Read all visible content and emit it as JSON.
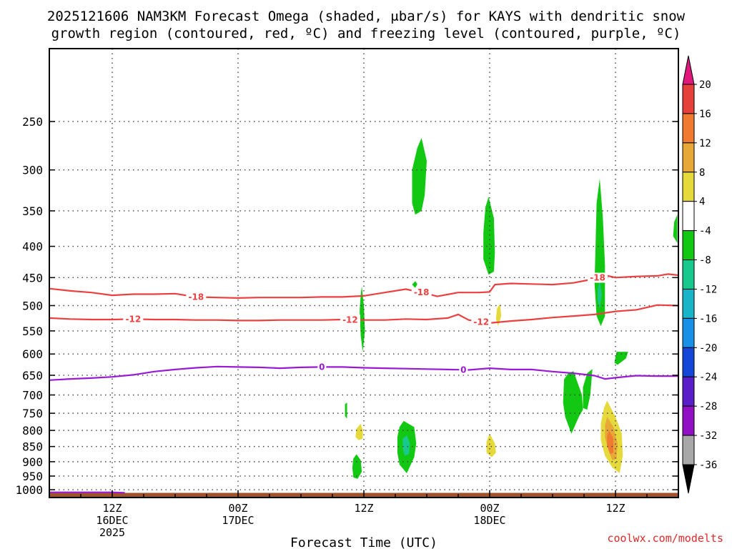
{
  "chart_data": {
    "type": "heatmap",
    "title_line1": "2025121606 NAM3KM Forecast Omega (shaded, μbar/s) for KAYS with dendritic snow",
    "title_line2": "growth region (contoured, red, ºC) and freezing level (contoured, purple, ºC)",
    "xlabel": "Forecast Time (UTC)",
    "credit": "coolwx.com/modelts",
    "y_axis": {
      "log_pressure": true,
      "ylim": [
        1030,
        190
      ],
      "ticks": [
        250,
        300,
        350,
        400,
        450,
        500,
        550,
        600,
        650,
        700,
        750,
        800,
        850,
        900,
        950,
        1000
      ],
      "tick_labels": [
        "250",
        "300",
        "350",
        "400",
        "450",
        "500",
        "550",
        "600",
        "650",
        "700",
        "750",
        "800",
        "850",
        "900",
        "950",
        "1000"
      ]
    },
    "x_axis": {
      "units": "hours from 16DEC2025 00Z",
      "xlim": [
        6,
        66
      ],
      "major_ticks": [
        {
          "x": 12,
          "lines": [
            "12Z",
            "16DEC",
            "2025"
          ]
        },
        {
          "x": 24,
          "lines": [
            "00Z",
            "17DEC"
          ]
        },
        {
          "x": 36,
          "lines": [
            "12Z"
          ]
        },
        {
          "x": 48,
          "lines": [
            "00Z",
            "18DEC"
          ]
        },
        {
          "x": 60,
          "lines": [
            "12Z"
          ]
        }
      ],
      "grid": true
    },
    "colorbar": {
      "levels": [
        "20",
        "16",
        "12",
        "8",
        "4",
        "-4",
        "-8",
        "-12",
        "-16",
        "-20",
        "-24",
        "-28",
        "-32",
        "-36"
      ],
      "colors": [
        "#e0187c",
        "#e5403a",
        "#f07a30",
        "#e8a838",
        "#e6d93c",
        "#ffffff",
        "#12c812",
        "#18c88c",
        "#18b4c8",
        "#1890e8",
        "#1446d8",
        "#5a1ec8",
        "#9210c4",
        "#a8a8a8",
        "#000000"
      ]
    },
    "contours": [
      {
        "label": "-18",
        "color": "#ec4040",
        "points": [
          [
            6,
            469
          ],
          [
            8,
            473
          ],
          [
            10,
            476
          ],
          [
            12,
            481
          ],
          [
            14,
            479
          ],
          [
            16,
            479
          ],
          [
            18,
            478
          ],
          [
            20,
            484
          ],
          [
            22,
            485
          ],
          [
            24,
            486
          ],
          [
            26,
            485
          ],
          [
            28,
            485
          ],
          [
            30,
            485
          ],
          [
            32,
            484
          ],
          [
            34,
            484
          ],
          [
            36,
            482
          ],
          [
            38,
            476
          ],
          [
            40,
            470
          ],
          [
            42,
            478
          ],
          [
            43,
            483
          ],
          [
            45,
            476
          ],
          [
            47,
            476
          ],
          [
            48,
            475
          ],
          [
            48.5,
            462
          ],
          [
            50,
            460
          ],
          [
            52,
            461
          ],
          [
            54,
            462
          ],
          [
            56,
            459
          ],
          [
            58,
            452
          ],
          [
            59,
            446
          ],
          [
            60,
            450
          ],
          [
            62,
            448
          ],
          [
            64,
            447
          ],
          [
            65,
            444
          ],
          [
            66,
            446
          ]
        ]
      },
      {
        "label": "-12",
        "color": "#ec4040",
        "points": [
          [
            6,
            524
          ],
          [
            8,
            526
          ],
          [
            10,
            527
          ],
          [
            12,
            527
          ],
          [
            14,
            526
          ],
          [
            16,
            527
          ],
          [
            18,
            527
          ],
          [
            20,
            528
          ],
          [
            22,
            528
          ],
          [
            24,
            529
          ],
          [
            26,
            529
          ],
          [
            28,
            528
          ],
          [
            30,
            528
          ],
          [
            32,
            528
          ],
          [
            34,
            527
          ],
          [
            36,
            528
          ],
          [
            38,
            528
          ],
          [
            40,
            526
          ],
          [
            42,
            527
          ],
          [
            44,
            524
          ],
          [
            45,
            517
          ],
          [
            46,
            528
          ],
          [
            48,
            534
          ],
          [
            50,
            530
          ],
          [
            52,
            527
          ],
          [
            54,
            523
          ],
          [
            56,
            520
          ],
          [
            58,
            517
          ],
          [
            60,
            511
          ],
          [
            62,
            508
          ],
          [
            64,
            499
          ],
          [
            66,
            500
          ]
        ]
      },
      {
        "label": "0",
        "color": "#9a1ad4",
        "points": [
          [
            6,
            662
          ],
          [
            8,
            659
          ],
          [
            10,
            657
          ],
          [
            12,
            654
          ],
          [
            14,
            649
          ],
          [
            16,
            641
          ],
          [
            18,
            636
          ],
          [
            20,
            632
          ],
          [
            22,
            629
          ],
          [
            24,
            630
          ],
          [
            26,
            631
          ],
          [
            28,
            633
          ],
          [
            30,
            631
          ],
          [
            32,
            630
          ],
          [
            34,
            630
          ],
          [
            36,
            632
          ],
          [
            38,
            633
          ],
          [
            40,
            634
          ],
          [
            42,
            635
          ],
          [
            44,
            636
          ],
          [
            46,
            637
          ],
          [
            48,
            633
          ],
          [
            50,
            636
          ],
          [
            52,
            636
          ],
          [
            54,
            641
          ],
          [
            56,
            645
          ],
          [
            58,
            651
          ],
          [
            59,
            659
          ],
          [
            60,
            656
          ],
          [
            62,
            651
          ],
          [
            64,
            652
          ],
          [
            66,
            652
          ]
        ]
      },
      {
        "label": "",
        "color": "#9a1ad4",
        "points": [
          [
            6,
            1010
          ],
          [
            8,
            1010
          ],
          [
            10,
            1010
          ],
          [
            12,
            1010
          ],
          [
            13.2,
            1012
          ]
        ]
      }
    ],
    "omega_regions": [
      {
        "value": -6,
        "points": [
          [
            41.5,
            266
          ],
          [
            42,
            290
          ],
          [
            41.8,
            330
          ],
          [
            41.5,
            350
          ],
          [
            40.9,
            355
          ],
          [
            40.6,
            340
          ],
          [
            40.6,
            300
          ],
          [
            41.1,
            276
          ]
        ]
      },
      {
        "value": -6,
        "points": [
          [
            40.6,
            462
          ],
          [
            40.9,
            456
          ],
          [
            41.1,
            461
          ],
          [
            40.9,
            468
          ]
        ]
      },
      {
        "value": -6,
        "points": [
          [
            47.9,
            332
          ],
          [
            48.4,
            360
          ],
          [
            48.5,
            410
          ],
          [
            48.4,
            440
          ],
          [
            47.9,
            445
          ],
          [
            47.4,
            420
          ],
          [
            47.4,
            380
          ],
          [
            47.6,
            345
          ]
        ]
      },
      {
        "value": -6,
        "points": [
          [
            58.5,
            310
          ],
          [
            58.8,
            360
          ],
          [
            59.0,
            430
          ],
          [
            59.0,
            520
          ],
          [
            58.6,
            540
          ],
          [
            58.2,
            520
          ],
          [
            58.0,
            460
          ],
          [
            58.1,
            400
          ],
          [
            58.2,
            340
          ]
        ]
      },
      {
        "value": -10,
        "points": [
          [
            58.5,
            455
          ],
          [
            58.7,
            480
          ],
          [
            58.5,
            505
          ],
          [
            58.3,
            490
          ],
          [
            58.3,
            470
          ]
        ]
      },
      {
        "value": -6,
        "points": [
          [
            65.9,
            355
          ],
          [
            65.9,
            395
          ],
          [
            65.5,
            385
          ],
          [
            65.6,
            365
          ]
        ]
      },
      {
        "value": -6,
        "points": [
          [
            35.8,
            465
          ],
          [
            36,
            500
          ],
          [
            36.1,
            550
          ],
          [
            35.9,
            595
          ],
          [
            35.7,
            560
          ],
          [
            35.6,
            510
          ],
          [
            35.7,
            480
          ]
        ]
      },
      {
        "value": -6,
        "points": [
          [
            56,
            640
          ],
          [
            56.8,
            700
          ],
          [
            56.9,
            740
          ],
          [
            56.5,
            760
          ],
          [
            55.8,
            810
          ],
          [
            55.2,
            760
          ],
          [
            55.0,
            720
          ],
          [
            55.1,
            660
          ],
          [
            55.5,
            645
          ]
        ]
      },
      {
        "value": -6,
        "points": [
          [
            57.8,
            635
          ],
          [
            57.6,
            700
          ],
          [
            57.3,
            740
          ],
          [
            56.9,
            735
          ],
          [
            56.9,
            680
          ],
          [
            57.3,
            645
          ]
        ]
      },
      {
        "value": -6,
        "points": [
          [
            60.1,
            595
          ],
          [
            61.2,
            595
          ],
          [
            61.0,
            610
          ],
          [
            60.2,
            625
          ],
          [
            59.9,
            620
          ]
        ]
      },
      {
        "value": -6,
        "points": [
          [
            34.4,
            720
          ],
          [
            34.4,
            765
          ],
          [
            34.2,
            758
          ],
          [
            34.2,
            725
          ]
        ]
      },
      {
        "value": -6,
        "points": [
          [
            39.8,
            772
          ],
          [
            40.8,
            790
          ],
          [
            41.0,
            840
          ],
          [
            40.8,
            885
          ],
          [
            40.1,
            940
          ],
          [
            39.4,
            910
          ],
          [
            39.2,
            870
          ],
          [
            39.2,
            820
          ],
          [
            39.4,
            790
          ]
        ]
      },
      {
        "value": -10,
        "points": [
          [
            40.1,
            815
          ],
          [
            40.4,
            840
          ],
          [
            40.3,
            875
          ],
          [
            39.9,
            880
          ],
          [
            39.7,
            855
          ],
          [
            39.7,
            825
          ]
        ]
      },
      {
        "value": -6,
        "points": [
          [
            35.3,
            875
          ],
          [
            35.7,
            895
          ],
          [
            35.8,
            935
          ],
          [
            35.4,
            960
          ],
          [
            35.0,
            955
          ],
          [
            34.9,
            920
          ],
          [
            35.0,
            890
          ]
        ]
      },
      {
        "value": 6,
        "points": [
          [
            35.7,
            780
          ],
          [
            35.9,
            800
          ],
          [
            35.9,
            825
          ],
          [
            35.5,
            830
          ],
          [
            35.2,
            820
          ],
          [
            35.3,
            795
          ]
        ]
      },
      {
        "value": 6,
        "points": [
          [
            48.0,
            810
          ],
          [
            48.5,
            840
          ],
          [
            48.6,
            870
          ],
          [
            48.2,
            885
          ],
          [
            47.7,
            870
          ],
          [
            47.7,
            835
          ]
        ]
      },
      {
        "value": 6,
        "points": [
          [
            49.0,
            497
          ],
          [
            49.1,
            520
          ],
          [
            48.8,
            540
          ],
          [
            48.6,
            525
          ],
          [
            48.7,
            505
          ]
        ]
      },
      {
        "value": 6,
        "points": [
          [
            59.2,
            715
          ],
          [
            60.0,
            760
          ],
          [
            60.6,
            810
          ],
          [
            60.7,
            880
          ],
          [
            60.4,
            940
          ],
          [
            59.7,
            920
          ],
          [
            59.0,
            880
          ],
          [
            58.6,
            830
          ],
          [
            58.6,
            780
          ],
          [
            58.9,
            735
          ]
        ]
      },
      {
        "value": 10,
        "points": [
          [
            59.2,
            760
          ],
          [
            59.8,
            790
          ],
          [
            60.2,
            840
          ],
          [
            60.1,
            890
          ],
          [
            59.7,
            895
          ],
          [
            59.3,
            860
          ],
          [
            59.0,
            820
          ],
          [
            59.0,
            785
          ]
        ]
      },
      {
        "value": 14,
        "points": [
          [
            59.4,
            800
          ],
          [
            59.8,
            825
          ],
          [
            59.8,
            870
          ],
          [
            59.5,
            875
          ],
          [
            59.2,
            845
          ],
          [
            59.2,
            815
          ]
        ]
      }
    ],
    "terrain": {
      "color": "#a0522d",
      "top_pressure": 1012
    }
  }
}
